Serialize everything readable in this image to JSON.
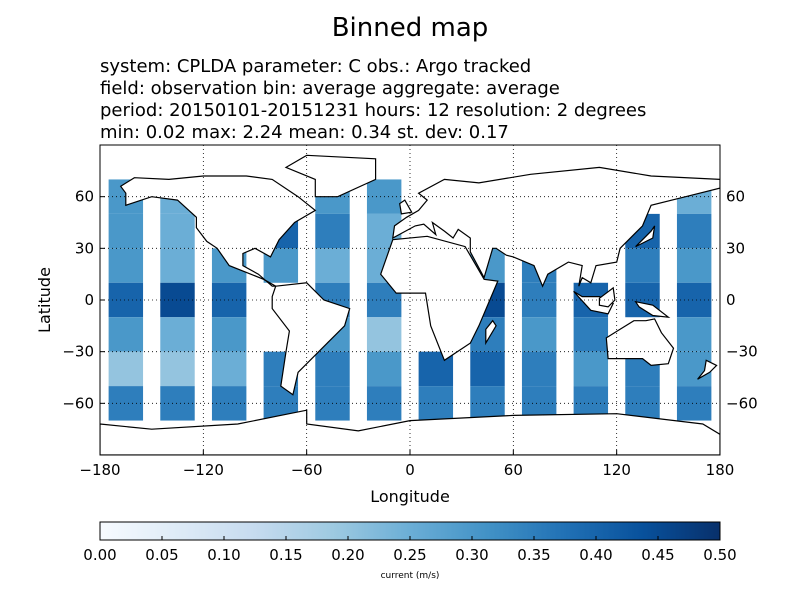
{
  "chart_data": {
    "type": "binned-map",
    "title": "Binned map",
    "subtitle_lines": [
      "system: CPLDA    parameter: C    obs.: Argo tracked",
      "field: observation    bin: average    aggregate: average",
      "period: 20150101-20151231    hours: 12    resolution: 2 degrees",
      "min: 0.02    max: 2.24    mean: 0.34    st. dev: 0.17"
    ],
    "x_label": "Longitude",
    "y_label": "Latitude",
    "xlim": [
      -180,
      180
    ],
    "ylim": [
      -90,
      90
    ],
    "xticks": [
      {
        "value": -180,
        "label": "−180"
      },
      {
        "value": -120,
        "label": "−120"
      },
      {
        "value": -60,
        "label": "−60"
      },
      0,
      60,
      120,
      180
    ],
    "yticks": [
      {
        "value": -60,
        "label": "−60"
      },
      {
        "value": -30,
        "label": "−30"
      },
      0,
      30,
      60
    ],
    "grid": true,
    "x": [
      -165,
      -135,
      -105,
      -75,
      -45,
      -15,
      15,
      45,
      75,
      105,
      135,
      165
    ],
    "y": [
      60,
      40,
      20,
      0,
      -20,
      -40,
      -60
    ],
    "cell_size": 20,
    "values": [
      [
        0.3,
        0.25,
        null,
        null,
        0.3,
        0.3,
        null,
        null,
        null,
        null,
        null,
        0.25
      ],
      [
        0.3,
        0.25,
        null,
        0.4,
        0.35,
        0.25,
        null,
        null,
        null,
        null,
        0.4,
        0.35
      ],
      [
        0.3,
        0.25,
        0.3,
        0.3,
        0.25,
        0.25,
        null,
        0.3,
        0.35,
        null,
        0.35,
        0.3
      ],
      [
        0.4,
        0.45,
        0.4,
        null,
        0.35,
        0.35,
        null,
        0.45,
        0.35,
        0.4,
        0.4,
        0.4
      ],
      [
        0.3,
        0.25,
        0.3,
        null,
        0.3,
        0.2,
        null,
        0.35,
        0.3,
        0.35,
        null,
        0.3
      ],
      [
        0.2,
        0.2,
        0.25,
        0.35,
        0.35,
        0.3,
        0.4,
        0.4,
        0.35,
        0.3,
        0.35,
        0.3
      ],
      [
        0.35,
        0.35,
        0.35,
        0.35,
        0.35,
        0.35,
        0.35,
        0.35,
        0.35,
        0.35,
        0.35,
        0.35
      ]
    ],
    "colormap": [
      "#f7fbff",
      "#deebf7",
      "#c6dbef",
      "#9ecae1",
      "#6baed6",
      "#4292c6",
      "#2171b5",
      "#08519c",
      "#08306b"
    ],
    "clim": [
      0,
      0.5
    ],
    "colorbar_ticks": [
      {
        "value": 0,
        "label": "0.00"
      },
      {
        "value": 0.05,
        "label": "0.05"
      },
      {
        "value": 0.1,
        "label": "0.10"
      },
      {
        "value": 0.15,
        "label": "0.15"
      },
      {
        "value": 0.2,
        "label": "0.20"
      },
      {
        "value": 0.25,
        "label": "0.25"
      },
      {
        "value": 0.3,
        "label": "0.30"
      },
      {
        "value": 0.35,
        "label": "0.35"
      },
      {
        "value": 0.4,
        "label": "0.40"
      },
      {
        "value": 0.45,
        "label": "0.45"
      },
      {
        "value": 0.5,
        "label": "0.50"
      }
    ],
    "colorbar_label": "current (m/s)"
  }
}
